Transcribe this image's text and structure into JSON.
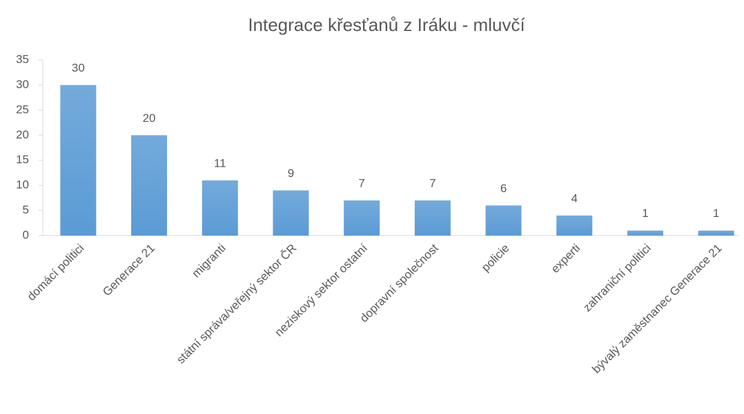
{
  "chart_data": {
    "type": "bar",
    "title": "Integrace křesťanů z Iráku - mluvčí",
    "categories": [
      "domácí politici",
      "Generace 21",
      "migranti",
      "státní správa/veřejný sektor ČR",
      "neziskový sektor ostatní",
      "dopravní společnost",
      "policie",
      "experti",
      "zahraniční politici",
      "bývalý zaměstnanec Generace 21"
    ],
    "values": [
      30,
      20,
      11,
      9,
      7,
      7,
      6,
      4,
      1,
      1
    ],
    "color": "#5b9bd5",
    "ylim": [
      0,
      35
    ],
    "yticks": [
      0,
      5,
      10,
      15,
      20,
      25,
      30,
      35
    ],
    "grid": false
  }
}
